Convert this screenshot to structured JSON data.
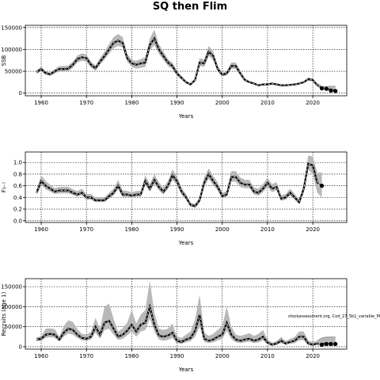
{
  "figure": {
    "title": "SQ then Flim"
  },
  "chart_data": [
    {
      "type": "line",
      "ylabel": "SSB",
      "xlabel": "Years",
      "xlim": [
        1956.5,
        2027.5
      ],
      "ylim": [
        -6000,
        155000
      ],
      "xticks": [
        1960,
        1970,
        1980,
        1990,
        2000,
        2010,
        2020
      ],
      "yticks": [
        0,
        50000,
        100000,
        150000
      ],
      "ytick_labels": [
        "0",
        "50000",
        "100000",
        "150000"
      ],
      "grid": true,
      "historical": {
        "years": [
          1959,
          1960,
          1961,
          1962,
          1963,
          1964,
          1965,
          1966,
          1967,
          1968,
          1969,
          1970,
          1971,
          1972,
          1973,
          1974,
          1975,
          1976,
          1977,
          1978,
          1979,
          1980,
          1981,
          1982,
          1983,
          1984,
          1985,
          1986,
          1987,
          1988,
          1989,
          1990,
          1991,
          1992,
          1993,
          1994,
          1995,
          1996,
          1997,
          1998,
          1999,
          2000,
          2001,
          2002,
          2003,
          2004,
          2005,
          2006,
          2007,
          2008,
          2009,
          2010,
          2011,
          2012,
          2013,
          2014,
          2015,
          2016,
          2017,
          2018,
          2019,
          2020,
          2021
        ],
        "median": [
          48000,
          55000,
          46000,
          43000,
          50000,
          55000,
          55000,
          56000,
          65000,
          78000,
          82000,
          80000,
          65000,
          57000,
          72000,
          85000,
          100000,
          115000,
          120000,
          115000,
          80000,
          68000,
          65000,
          68000,
          70000,
          110000,
          125000,
          100000,
          85000,
          70000,
          62000,
          45000,
          35000,
          25000,
          20000,
          30000,
          70000,
          68000,
          95000,
          85000,
          55000,
          42000,
          45000,
          62000,
          62000,
          45000,
          30000,
          25000,
          22000,
          18000,
          20000,
          20000,
          22000,
          20000,
          18000,
          18000,
          19000,
          20000,
          22000,
          25000,
          32000,
          30000,
          18000
        ],
        "lower": [
          44000,
          50000,
          42000,
          40000,
          45000,
          50000,
          50000,
          50000,
          58000,
          70000,
          74000,
          72000,
          58000,
          52000,
          65000,
          77000,
          90000,
          103000,
          108000,
          105000,
          72000,
          60000,
          56000,
          58000,
          60000,
          98000,
          110000,
          90000,
          76000,
          62000,
          55000,
          40000,
          31000,
          22000,
          18000,
          27000,
          62000,
          60000,
          85000,
          76000,
          50000,
          38000,
          41000,
          56000,
          56000,
          40000,
          27000,
          23000,
          20000,
          16000,
          18000,
          18000,
          20000,
          18000,
          16000,
          16000,
          17000,
          18000,
          20000,
          23000,
          29000,
          27000,
          16000
        ],
        "upper": [
          53000,
          60000,
          50000,
          47000,
          55000,
          62000,
          62000,
          63000,
          72000,
          86000,
          91000,
          88000,
          72000,
          63000,
          80000,
          95000,
          112000,
          128000,
          135000,
          128000,
          90000,
          76000,
          74000,
          78000,
          82000,
          125000,
          145000,
          112000,
          95000,
          78000,
          70000,
          50000,
          39000,
          28000,
          23000,
          34000,
          80000,
          77000,
          108000,
          96000,
          62000,
          47000,
          50000,
          70000,
          70000,
          50000,
          34000,
          28000,
          25000,
          20000,
          22000,
          22000,
          24000,
          22000,
          20000,
          20000,
          21000,
          22000,
          24000,
          27000,
          36000,
          33000,
          22000
        ]
      },
      "projection": {
        "years": [
          2022,
          2023,
          2024,
          2025
        ],
        "median": [
          12000,
          11000,
          8000,
          6000
        ],
        "lower": [
          10000,
          8000,
          5000,
          3000
        ],
        "upper": [
          15000,
          15000,
          16000,
          16000
        ],
        "points": [
          11000,
          10000,
          6000,
          5000
        ]
      }
    },
    {
      "type": "line",
      "ylabel": "F₃₋₇",
      "xlabel": "Years",
      "xlim": [
        1956.5,
        2027.5
      ],
      "ylim": [
        -0.03,
        1.18
      ],
      "xticks": [
        1960,
        1970,
        1980,
        1990,
        2000,
        2010,
        2020
      ],
      "yticks": [
        0.0,
        0.2,
        0.4,
        0.6,
        0.8,
        1.0
      ],
      "ytick_labels": [
        "0.0",
        "0.2",
        "0.4",
        "0.6",
        "0.8",
        "1.0"
      ],
      "grid": true,
      "historical": {
        "years": [
          1959,
          1960,
          1961,
          1962,
          1963,
          1964,
          1965,
          1966,
          1967,
          1968,
          1969,
          1970,
          1971,
          1972,
          1973,
          1974,
          1975,
          1976,
          1977,
          1978,
          1979,
          1980,
          1981,
          1982,
          1983,
          1984,
          1985,
          1986,
          1987,
          1988,
          1989,
          1990,
          1991,
          1992,
          1993,
          1994,
          1995,
          1996,
          1997,
          1998,
          1999,
          2000,
          2001,
          2002,
          2003,
          2004,
          2005,
          2006,
          2007,
          2008,
          2009,
          2010,
          2011,
          2012,
          2013,
          2014,
          2015,
          2016,
          2017,
          2018,
          2019,
          2020,
          2021
        ],
        "median": [
          0.48,
          0.68,
          0.6,
          0.55,
          0.5,
          0.52,
          0.52,
          0.52,
          0.48,
          0.45,
          0.48,
          0.4,
          0.4,
          0.35,
          0.35,
          0.35,
          0.42,
          0.48,
          0.6,
          0.45,
          0.45,
          0.43,
          0.45,
          0.45,
          0.68,
          0.55,
          0.7,
          0.58,
          0.5,
          0.6,
          0.78,
          0.68,
          0.5,
          0.4,
          0.27,
          0.25,
          0.35,
          0.65,
          0.8,
          0.68,
          0.58,
          0.42,
          0.45,
          0.75,
          0.75,
          0.65,
          0.62,
          0.62,
          0.5,
          0.48,
          0.55,
          0.65,
          0.55,
          0.58,
          0.38,
          0.4,
          0.48,
          0.4,
          0.32,
          0.55,
          0.98,
          0.95,
          0.65
        ],
        "lower": [
          0.44,
          0.62,
          0.54,
          0.5,
          0.46,
          0.47,
          0.47,
          0.47,
          0.44,
          0.41,
          0.44,
          0.36,
          0.36,
          0.32,
          0.32,
          0.32,
          0.38,
          0.43,
          0.54,
          0.4,
          0.41,
          0.39,
          0.41,
          0.41,
          0.61,
          0.5,
          0.63,
          0.52,
          0.45,
          0.54,
          0.7,
          0.61,
          0.45,
          0.36,
          0.24,
          0.22,
          0.31,
          0.58,
          0.72,
          0.61,
          0.52,
          0.38,
          0.41,
          0.67,
          0.67,
          0.58,
          0.56,
          0.56,
          0.45,
          0.43,
          0.49,
          0.58,
          0.49,
          0.52,
          0.34,
          0.36,
          0.43,
          0.36,
          0.28,
          0.48,
          0.88,
          0.8,
          0.48
        ],
        "upper": [
          0.53,
          0.78,
          0.68,
          0.62,
          0.56,
          0.58,
          0.58,
          0.58,
          0.54,
          0.51,
          0.55,
          0.46,
          0.46,
          0.4,
          0.4,
          0.4,
          0.48,
          0.55,
          0.7,
          0.52,
          0.51,
          0.49,
          0.51,
          0.51,
          0.78,
          0.63,
          0.8,
          0.66,
          0.57,
          0.68,
          0.88,
          0.77,
          0.57,
          0.46,
          0.31,
          0.29,
          0.4,
          0.74,
          0.9,
          0.77,
          0.66,
          0.48,
          0.51,
          0.85,
          0.85,
          0.74,
          0.7,
          0.7,
          0.57,
          0.55,
          0.63,
          0.74,
          0.63,
          0.66,
          0.43,
          0.46,
          0.55,
          0.46,
          0.37,
          0.62,
          1.12,
          1.1,
          0.82
        ]
      },
      "projection": {
        "years": [
          2022,
          2023,
          2024,
          2025
        ],
        "median": [
          0.6,
          null,
          null,
          null
        ],
        "lower": [
          0.4,
          null,
          null,
          null
        ],
        "upper": [
          0.83,
          null,
          null,
          null
        ],
        "points": [
          0.6,
          null,
          null,
          null
        ]
      }
    },
    {
      "type": "line",
      "ylabel": "Recruits (age 1)",
      "xlabel": "Years",
      "xlim": [
        1956.5,
        2027.5
      ],
      "ylim": [
        -6000,
        170000
      ],
      "xticks": [
        1960,
        1970,
        1980,
        1990,
        2000,
        2010,
        2020
      ],
      "yticks": [
        0,
        50000,
        100000,
        150000
      ],
      "ytick_labels": [
        "0",
        "50000",
        "100000",
        "150000"
      ],
      "grid": true,
      "annotation": "stockassessment.org, Cod_27_5b1_variable_M",
      "historical": {
        "years": [
          1959,
          1960,
          1961,
          1962,
          1963,
          1964,
          1965,
          1966,
          1967,
          1968,
          1969,
          1970,
          1971,
          1972,
          1973,
          1974,
          1975,
          1976,
          1977,
          1978,
          1979,
          1980,
          1981,
          1982,
          1983,
          1984,
          1985,
          1986,
          1987,
          1988,
          1989,
          1990,
          1991,
          1992,
          1993,
          1994,
          1995,
          1996,
          1997,
          1998,
          1999,
          2000,
          2001,
          2002,
          2003,
          2004,
          2005,
          2006,
          2007,
          2008,
          2009,
          2010,
          2011,
          2012,
          2013,
          2014,
          2015,
          2016,
          2017,
          2018,
          2019,
          2020,
          2021
        ],
        "median": [
          18000,
          20000,
          30000,
          32000,
          30000,
          18000,
          35000,
          45000,
          42000,
          30000,
          22000,
          20000,
          25000,
          50000,
          30000,
          60000,
          65000,
          45000,
          25000,
          30000,
          40000,
          55000,
          38000,
          55000,
          60000,
          100000,
          55000,
          28000,
          25000,
          28000,
          35000,
          15000,
          12000,
          18000,
          22000,
          40000,
          80000,
          20000,
          15000,
          18000,
          25000,
          30000,
          60000,
          30000,
          18000,
          15000,
          18000,
          20000,
          15000,
          18000,
          25000,
          10000,
          5000,
          8000,
          15000,
          8000,
          12000,
          15000,
          25000,
          25000,
          8000,
          5000,
          8000
        ],
        "lower": [
          14000,
          15000,
          22000,
          24000,
          22000,
          13000,
          25000,
          33000,
          30000,
          22000,
          16000,
          15000,
          18000,
          35000,
          20000,
          42000,
          45000,
          30000,
          17000,
          20000,
          28000,
          38000,
          25000,
          38000,
          42000,
          70000,
          38000,
          18000,
          15000,
          17000,
          22000,
          9000,
          7000,
          11000,
          14000,
          25000,
          50000,
          12000,
          9000,
          11000,
          16000,
          19000,
          40000,
          19000,
          11000,
          9000,
          11000,
          13000,
          9000,
          11000,
          16000,
          6000,
          3000,
          5000,
          9000,
          5000,
          7000,
          9000,
          16000,
          16000,
          4000,
          3000,
          5000
        ],
        "upper": [
          24000,
          26000,
          45000,
          46000,
          44000,
          25000,
          52000,
          66000,
          62000,
          44000,
          32000,
          30000,
          37000,
          72000,
          45000,
          100000,
          108000,
          70000,
          38000,
          46000,
          60000,
          92000,
          58000,
          80000,
          92000,
          165000,
          85000,
          45000,
          42000,
          45000,
          58000,
          26000,
          22000,
          30000,
          38000,
          68000,
          130000,
          35000,
          27000,
          32000,
          42000,
          52000,
          100000,
          50000,
          30000,
          27000,
          30000,
          34000,
          27000,
          32000,
          42000,
          18000,
          10000,
          14000,
          25000,
          14000,
          20000,
          25000,
          38000,
          38000,
          15000,
          12000,
          15000
        ]
      },
      "projection": {
        "years": [
          2022,
          2023,
          2024,
          2025
        ],
        "median": [
          8000,
          8000,
          8000,
          8000
        ],
        "lower": [
          3000,
          3000,
          3000,
          3000
        ],
        "upper": [
          22000,
          24000,
          24000,
          24000
        ],
        "points": [
          5000,
          7000,
          7000,
          7000
        ]
      }
    }
  ]
}
